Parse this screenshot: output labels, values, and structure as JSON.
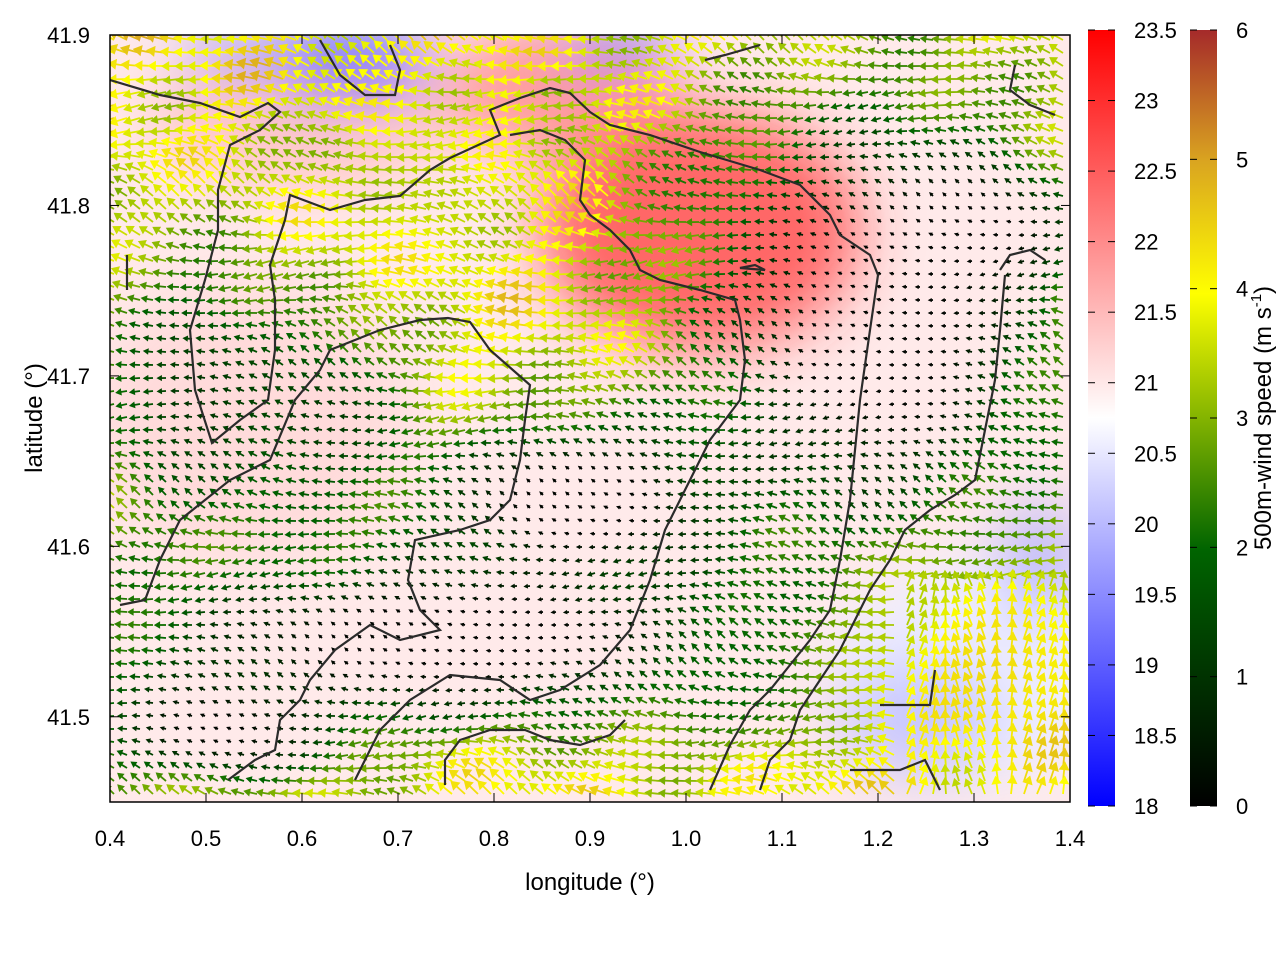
{
  "chart_data": {
    "type": "heatmap",
    "title": "",
    "xlabel": "longitude (°)",
    "ylabel": "latitude (°)",
    "xlim": [
      0.4,
      1.4
    ],
    "ylim": [
      41.45,
      41.9
    ],
    "xticks": [
      0.4,
      0.5,
      0.6,
      0.7,
      0.8,
      0.9,
      1.0,
      1.1,
      1.2,
      1.3,
      1.4
    ],
    "xtick_labels": [
      "0.4",
      "0.5",
      "0.6",
      "0.7",
      "0.8",
      "0.9",
      "1.0",
      "1.1",
      "1.2",
      "1.3",
      "1.4"
    ],
    "yticks": [
      41.5,
      41.6,
      41.7,
      41.8,
      41.9
    ],
    "ytick_labels": [
      "41.5",
      "41.6",
      "41.7",
      "41.8",
      "41.9"
    ],
    "temperature_colorbar": {
      "range": [
        18,
        23.5
      ],
      "ticks": [
        18,
        18.5,
        19,
        19.5,
        20,
        20.5,
        21,
        21.5,
        22,
        22.5,
        23,
        23.5
      ],
      "tick_labels": [
        "18",
        "18.5",
        "19",
        "19.5",
        "20",
        "20.5",
        "21",
        "21.5",
        "22",
        "22.5",
        "23",
        "23.5"
      ],
      "colors": [
        "#0000ff",
        "#ffffff",
        "#ff0000"
      ]
    },
    "wind_colorbar": {
      "label": "500m-wind speed (m s-1)",
      "label_main": "500m-wind speed (m s",
      "label_sup": "-1",
      "label_end": ")",
      "range": [
        0,
        6
      ],
      "ticks": [
        0,
        1,
        2,
        3,
        4,
        5,
        6
      ],
      "tick_labels": [
        "0",
        "1",
        "2",
        "3",
        "4",
        "5",
        "6"
      ],
      "colors": [
        "#000000",
        "#006400",
        "#ffff00",
        "#daa520",
        "#a52a2a"
      ]
    },
    "grid": false,
    "legend": "none"
  }
}
